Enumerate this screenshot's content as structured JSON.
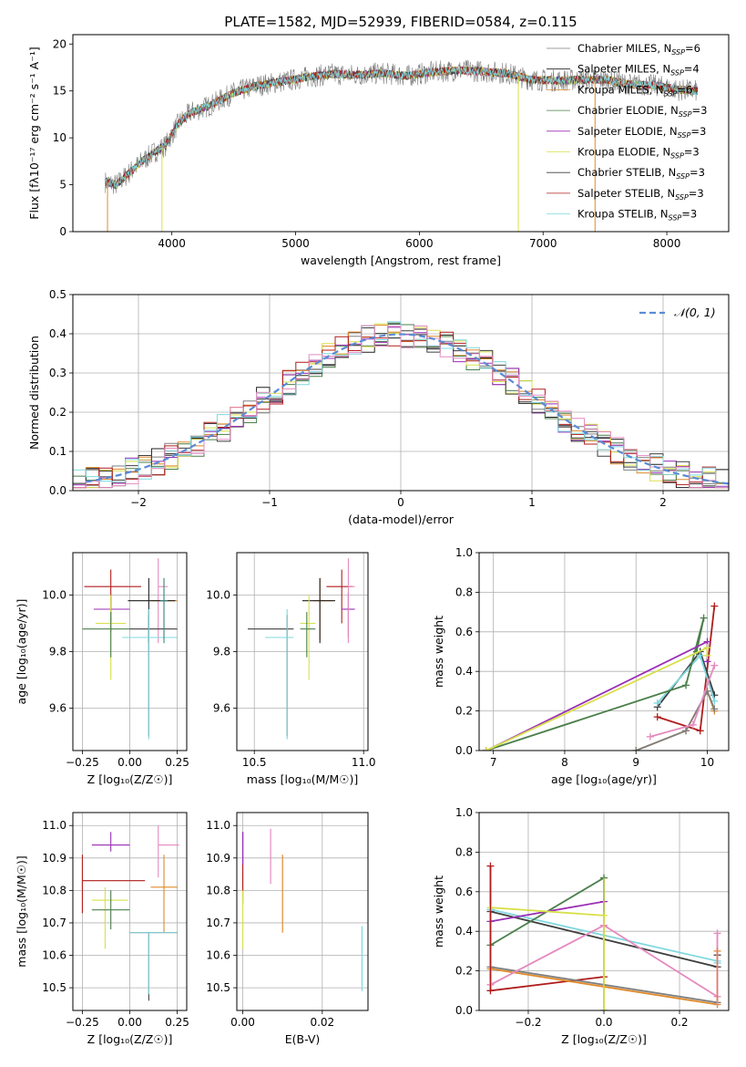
{
  "figure_title": "PLATE=1582, MJD=52939, FIBERID=0584, z=0.115",
  "colors": {
    "Chabrier MILES": "#7f7f7f",
    "Salpeter MILES": "#1f1f1f",
    "Kroupa MILES": "#e08a2a",
    "Chabrier ELODIE": "#4a7f4a",
    "Salpeter ELODIE": "#9a2fb5",
    "Kroupa ELODIE": "#d8e04a",
    "Chabrier STELIB": "#3f3f3f",
    "Salpeter STELIB": "#b01c1c",
    "Kroupa STELIB": "#7fd8df",
    "pink": "#e58ac0",
    "teal": "#3a8a8a",
    "normal_line": "#5b8bd6"
  },
  "chart_data": [
    {
      "id": "spectrum",
      "type": "line",
      "title": "PLATE=1582, MJD=52939, FIBERID=0584, z=0.115",
      "xlabel": "wavelength [Angstrom, rest frame]",
      "ylabel": "Flux [fλ10⁻¹⁷ erg cm⁻² s⁻¹ A⁻¹]",
      "xlim": [
        3200,
        8500
      ],
      "ylim": [
        0,
        21
      ],
      "xticks": [
        4000,
        5000,
        6000,
        7000,
        8000
      ],
      "yticks": [
        0,
        5,
        10,
        15,
        20
      ],
      "grid": false,
      "legend_position": "right",
      "continuum": {
        "x": [
          3460,
          3550,
          3650,
          3750,
          3850,
          3950,
          4050,
          4150,
          4300,
          4500,
          4700,
          4900,
          5100,
          5300,
          5500,
          5700,
          5900,
          6100,
          6300,
          6500,
          6700,
          6900,
          7100,
          7300,
          7500,
          7700,
          7900,
          8100,
          8250
        ],
        "y": [
          5.3,
          5.0,
          6.2,
          7.4,
          8.4,
          9.2,
          11.5,
          12.7,
          13.4,
          14.8,
          15.6,
          16.0,
          16.5,
          16.8,
          16.7,
          16.9,
          16.6,
          17.0,
          17.2,
          17.1,
          16.9,
          16.2,
          16.1,
          16.2,
          16.2,
          15.7,
          15.6,
          15.1,
          15.0
        ]
      },
      "series": [
        {
          "name": "Chabrier MILES, N_SSP=6",
          "label": "Chabrier MILES, N",
          "sub": "SSP",
          "tail": "=6"
        },
        {
          "name": "Salpeter MILES, N_SSP=4",
          "label": "Salpeter MILES, N",
          "sub": "SSP",
          "tail": "=4"
        },
        {
          "name": "Kroupa MILES, N_SSP=6",
          "label": "Kroupa MILES, N",
          "sub": "SSP",
          "tail": "=6"
        },
        {
          "name": "Chabrier ELODIE, N_SSP=3",
          "label": "Chabrier ELODIE, N",
          "sub": "SSP",
          "tail": "=3"
        },
        {
          "name": "Salpeter ELODIE, N_SSP=3",
          "label": "Salpeter ELODIE, N",
          "sub": "SSP",
          "tail": "=3"
        },
        {
          "name": "Kroupa ELODIE, N_SSP=3",
          "label": "Kroupa ELODIE, N",
          "sub": "SSP",
          "tail": "=3"
        },
        {
          "name": "Chabrier STELIB, N_SSP=3",
          "label": "Chabrier STELIB, N",
          "sub": "SSP",
          "tail": "=3"
        },
        {
          "name": "Salpeter STELIB, N_SSP=3",
          "label": "Salpeter STELIB, N",
          "sub": "SSP",
          "tail": "=3"
        },
        {
          "name": "Kroupa STELIB, N_SSP=3",
          "label": "Kroupa STELIB, N",
          "sub": "SSP",
          "tail": "=3"
        }
      ]
    },
    {
      "id": "residuals",
      "type": "histogram",
      "xlabel": "(data-model)/error",
      "ylabel": "Normed distribution",
      "xlim": [
        -2.5,
        2.5
      ],
      "ylim": [
        0,
        0.5
      ],
      "xticks": [
        -2,
        -1,
        0,
        1,
        2
      ],
      "yticks": [
        0.0,
        0.1,
        0.2,
        0.3,
        0.4,
        0.5
      ],
      "grid": true,
      "legend": "𝒩(0, 1)",
      "legend_position": "top-right",
      "bin_width": 0.1,
      "x_start": -2.5,
      "hist_series": [
        {
          "name": "Chabrier MILES",
          "values": [
            0.025,
            0.03,
            0.032,
            0.028,
            0.04,
            0.05,
            0.055,
            0.07,
            0.09,
            0.1,
            0.11,
            0.12,
            0.13,
            0.15,
            0.17,
            0.19,
            0.21,
            0.22,
            0.23,
            0.25,
            0.26,
            0.28,
            0.3,
            0.32,
            0.33,
            0.35,
            0.36,
            0.37,
            0.38,
            0.39,
            0.4,
            0.41,
            0.39,
            0.4,
            0.41,
            0.4,
            0.39,
            0.4,
            0.38,
            0.37,
            0.36,
            0.35,
            0.33,
            0.32,
            0.3,
            0.28,
            0.27,
            0.25,
            0.23,
            0.22,
            0.2,
            0.18,
            0.17,
            0.15,
            0.13,
            0.12,
            0.1,
            0.09,
            0.08,
            0.07,
            0.06,
            0.05,
            0.045,
            0.04,
            0.035,
            0.03,
            0.025,
            0.02,
            0.02,
            0.015
          ]
        }
      ],
      "normal": {
        "mu": 0,
        "sigma": 1
      }
    },
    {
      "id": "age-Z",
      "type": "errorbar",
      "xlabel": "Z [log₁₀(Z/Z☉)]",
      "ylabel": "age  [log₁₀(age/yr)]",
      "xlim": [
        -0.3,
        0.3
      ],
      "ylim": [
        9.45,
        10.15
      ],
      "xticks": [
        -0.25,
        0.0,
        0.25
      ],
      "xticklabels": [
        "−0.25",
        "0.00",
        "0.25"
      ],
      "yticks": [
        9.6,
        9.8,
        10.0
      ],
      "grid": true,
      "points": [
        {
          "x": -0.1,
          "y": 10.03,
          "xe": [
            0.14,
            0.16
          ],
          "ye": [
            0.13,
            0.06
          ],
          "color": "Salpeter STELIB"
        },
        {
          "x": -0.1,
          "y": 9.95,
          "xe": [
            0.09,
            0.1
          ],
          "ye": [
            0.08,
            0.05
          ],
          "color": "Salpeter ELODIE"
        },
        {
          "x": 0.15,
          "y": 10.03,
          "xe": [
            0.0,
            0.05
          ],
          "ye": [
            0.2,
            0.1
          ],
          "color": "pink"
        },
        {
          "x": 0.18,
          "y": 9.98,
          "xe": [
            0.07,
            0.07
          ],
          "ye": [
            0.14,
            0.08
          ],
          "color": "Kroupa MILES"
        },
        {
          "x": 0.1,
          "y": 9.98,
          "xe": [
            0.11,
            0.14
          ],
          "ye": [
            0.15,
            0.08
          ],
          "color": "Salpeter MILES"
        },
        {
          "x": -0.1,
          "y": 9.9,
          "xe": [
            0.08,
            0.08
          ],
          "ye": [
            0.2,
            0.1
          ],
          "color": "Kroupa ELODIE"
        },
        {
          "x": -0.1,
          "y": 9.88,
          "xe": [
            0.15,
            0.1
          ],
          "ye": [
            0.1,
            0.06
          ],
          "color": "Chabrier ELODIE"
        },
        {
          "x": 0.1,
          "y": 9.88,
          "xe": [
            0.1,
            0.15
          ],
          "ye": [
            0.38,
            0.05
          ],
          "color": "Chabrier STELIB"
        },
        {
          "x": 0.1,
          "y": 9.85,
          "xe": [
            0.14,
            0.15
          ],
          "ye": [
            0.36,
            0.1
          ],
          "color": "Kroupa STELIB"
        },
        {
          "x": 0.18,
          "y": 9.98,
          "xe": [
            0.02,
            0.02
          ],
          "ye": [
            0.15,
            0.08
          ],
          "color": "teal"
        }
      ]
    },
    {
      "id": "age-mass",
      "type": "errorbar",
      "xlabel": "mass [log₁₀(M/M☉)]",
      "ylabel": "",
      "xlim": [
        10.42,
        11.02
      ],
      "ylim": [
        9.45,
        10.15
      ],
      "xticks": [
        10.5,
        11.0
      ],
      "xticklabels": [
        "10.5",
        "11.0"
      ],
      "yticks": [
        9.6,
        9.8,
        10.0
      ],
      "grid": true,
      "points": [
        {
          "x": 10.9,
          "y": 10.03,
          "xe": [
            0.07,
            0.05
          ],
          "ye": [
            0.13,
            0.06
          ],
          "color": "Salpeter STELIB"
        },
        {
          "x": 10.93,
          "y": 9.95,
          "xe": [
            0.03,
            0.03
          ],
          "ye": [
            0.1,
            0.06
          ],
          "color": "Salpeter ELODIE"
        },
        {
          "x": 10.93,
          "y": 10.03,
          "xe": [
            0.0,
            0.03
          ],
          "ye": [
            0.2,
            0.1
          ],
          "color": "pink"
        },
        {
          "x": 10.8,
          "y": 9.98,
          "xe": [
            0.03,
            0.06
          ],
          "ye": [
            0.14,
            0.08
          ],
          "color": "Kroupa MILES"
        },
        {
          "x": 10.8,
          "y": 9.98,
          "xe": [
            0.08,
            0.07
          ],
          "ye": [
            0.15,
            0.08
          ],
          "color": "Salpeter MILES"
        },
        {
          "x": 10.75,
          "y": 9.9,
          "xe": [
            0.04,
            0.03
          ],
          "ye": [
            0.2,
            0.1
          ],
          "color": "Kroupa ELODIE"
        },
        {
          "x": 10.74,
          "y": 9.88,
          "xe": [
            0.03,
            0.04
          ],
          "ye": [
            0.1,
            0.06
          ],
          "color": "Chabrier ELODIE"
        },
        {
          "x": 10.65,
          "y": 9.88,
          "xe": [
            0.18,
            0.03
          ],
          "ye": [
            0.38,
            0.05
          ],
          "color": "Chabrier STELIB"
        },
        {
          "x": 10.65,
          "y": 9.85,
          "xe": [
            0.1,
            0.03
          ],
          "ye": [
            0.36,
            0.1
          ],
          "color": "Kroupa STELIB"
        }
      ]
    },
    {
      "id": "weight-age",
      "type": "line",
      "xlabel": "age  [log₁₀(age/yr)]",
      "ylabel": "mass weight",
      "xlim": [
        6.8,
        10.3
      ],
      "ylim": [
        0,
        1.0
      ],
      "xticks": [
        7,
        8,
        9,
        10
      ],
      "yticks": [
        0.0,
        0.2,
        0.4,
        0.6,
        0.8,
        1.0
      ],
      "grid": true,
      "series": [
        {
          "name": "Salpeter STELIB",
          "x": [
            9.3,
            9.9,
            10.1
          ],
          "y": [
            0.17,
            0.1,
            0.73
          ]
        },
        {
          "name": "Chabrier STELIB",
          "x": [
            9.3,
            9.9,
            10.1
          ],
          "y": [
            0.22,
            0.5,
            0.28
          ]
        },
        {
          "name": "Kroupa STELIB",
          "x": [
            9.3,
            9.9,
            10.1
          ],
          "y": [
            0.24,
            0.48,
            0.25
          ]
        },
        {
          "name": "Chabrier ELODIE",
          "x": [
            6.9,
            9.7,
            9.95,
            9.85
          ],
          "y": [
            0.0,
            0.33,
            0.67,
            0.5
          ]
        },
        {
          "name": "Salpeter ELODIE",
          "x": [
            6.9,
            10.0,
            10.0
          ],
          "y": [
            0.0,
            0.55,
            0.45
          ]
        },
        {
          "name": "Kroupa ELODIE",
          "x": [
            6.9,
            10.0,
            10.0
          ],
          "y": [
            0.0,
            0.52,
            0.48
          ]
        },
        {
          "name": "Kroupa MILES",
          "x": [
            9.0,
            9.7,
            10.0,
            10.1
          ],
          "y": [
            0.0,
            0.1,
            0.3,
            0.2
          ]
        },
        {
          "name": "Chabrier MILES",
          "x": [
            9.0,
            9.7,
            10.0,
            10.1
          ],
          "y": [
            0.0,
            0.1,
            0.3,
            0.21
          ]
        },
        {
          "name": "pink",
          "x": [
            9.2,
            9.8,
            10.1
          ],
          "y": [
            0.07,
            0.13,
            0.43
          ]
        }
      ]
    },
    {
      "id": "mass-Z",
      "type": "errorbar",
      "xlabel": "Z [log₁₀(Z/Z☉)]",
      "ylabel": "mass [log₁₀(M/M☉)]",
      "xlim": [
        -0.3,
        0.3
      ],
      "ylim": [
        10.43,
        11.04
      ],
      "xticks": [
        -0.25,
        0.0,
        0.25
      ],
      "xticklabels": [
        "−0.25",
        "0.00",
        "0.25"
      ],
      "yticks": [
        10.5,
        10.6,
        10.7,
        10.8,
        10.9,
        11.0
      ],
      "grid": true,
      "points": [
        {
          "x": -0.1,
          "y": 10.94,
          "xe": [
            0.1,
            0.1
          ],
          "ye": [
            0.02,
            0.04
          ],
          "color": "Salpeter ELODIE"
        },
        {
          "x": 0.15,
          "y": 10.94,
          "xe": [
            0.0,
            0.11
          ],
          "ye": [
            0.1,
            0.06
          ],
          "color": "pink"
        },
        {
          "x": -0.25,
          "y": 10.83,
          "xe": [
            0.0,
            0.33
          ],
          "ye": [
            0.1,
            0.08
          ],
          "color": "Salpeter STELIB"
        },
        {
          "x": 0.18,
          "y": 10.81,
          "xe": [
            0.07,
            0.07
          ],
          "ye": [
            0.14,
            0.1
          ],
          "color": "Kroupa MILES"
        },
        {
          "x": -0.13,
          "y": 10.77,
          "xe": [
            0.07,
            0.12
          ],
          "ye": [
            0.15,
            0.04
          ],
          "color": "Kroupa ELODIE"
        },
        {
          "x": -0.1,
          "y": 10.74,
          "xe": [
            0.1,
            0.1
          ],
          "ye": [
            0.06,
            0.06
          ],
          "color": "Chabrier ELODIE"
        },
        {
          "x": 0.1,
          "y": 10.67,
          "xe": [
            0.1,
            0.15
          ],
          "ye": [
            0.21,
            0.0
          ],
          "color": "Chabrier STELIB"
        },
        {
          "x": 0.1,
          "y": 10.67,
          "xe": [
            0.1,
            0.15
          ],
          "ye": [
            0.19,
            0.0
          ],
          "color": "Kroupa STELIB"
        }
      ]
    },
    {
      "id": "mass-EBV",
      "type": "errorbar",
      "xlabel": "E(B-V)",
      "ylabel": "",
      "xlim": [
        -0.0015,
        0.0315
      ],
      "ylim": [
        10.43,
        11.04
      ],
      "xticks": [
        0.0,
        0.02
      ],
      "xticklabels": [
        "0.00",
        "0.02"
      ],
      "yticks": [
        10.5,
        10.6,
        10.7,
        10.8,
        10.9,
        11.0
      ],
      "grid": true,
      "vbars": [
        {
          "x": 0.0,
          "y0": 10.76,
          "y1": 10.98,
          "color": "Salpeter STELIB"
        },
        {
          "x": 0.0,
          "y0": 10.62,
          "y1": 10.8,
          "color": "Kroupa ELODIE"
        },
        {
          "x": 0.0,
          "y0": 10.88,
          "y1": 10.98,
          "color": "Salpeter ELODIE"
        },
        {
          "x": 0.007,
          "y0": 10.82,
          "y1": 10.99,
          "color": "pink"
        },
        {
          "x": 0.01,
          "y0": 10.67,
          "y1": 10.91,
          "color": "Kroupa MILES"
        },
        {
          "x": 0.03,
          "y0": 10.49,
          "y1": 10.69,
          "color": "Kroupa STELIB"
        }
      ]
    },
    {
      "id": "weight-Z",
      "type": "line",
      "xlabel": "Z [log₁₀(Z/Z☉)]",
      "ylabel": "mass weight",
      "xlim": [
        -0.33,
        0.33
      ],
      "ylim": [
        0,
        1.0
      ],
      "xticks": [
        -0.2,
        0.0,
        0.2
      ],
      "xticklabels": [
        "−0.2",
        "0.0",
        "0.2"
      ],
      "yticks": [
        0.0,
        0.2,
        0.4,
        0.6,
        0.8,
        1.0
      ],
      "grid": true,
      "series": [
        {
          "name": "Salpeter STELIB",
          "x": [
            -0.3,
            -0.3,
            0.0
          ],
          "y": [
            0.73,
            0.1,
            0.17
          ]
        },
        {
          "name": "Chabrier STELIB",
          "x": [
            -0.3,
            0.3,
            0.3
          ],
          "y": [
            0.5,
            0.22,
            0.28
          ]
        },
        {
          "name": "Kroupa STELIB",
          "x": [
            -0.3,
            0.3,
            0.3
          ],
          "y": [
            0.51,
            0.25,
            0.24
          ]
        },
        {
          "name": "Chabrier ELODIE",
          "x": [
            -0.3,
            0.0,
            0.0
          ],
          "y": [
            0.33,
            0.67,
            0.0
          ]
        },
        {
          "name": "Salpeter ELODIE",
          "x": [
            -0.3,
            0.0
          ],
          "y": [
            0.45,
            0.55
          ]
        },
        {
          "name": "Kroupa ELODIE",
          "x": [
            -0.3,
            0.0,
            0.0
          ],
          "y": [
            0.52,
            0.48,
            0.0
          ]
        },
        {
          "name": "Kroupa MILES",
          "x": [
            -0.3,
            0.3,
            0.3
          ],
          "y": [
            0.21,
            0.03,
            0.3
          ]
        },
        {
          "name": "Chabrier MILES",
          "x": [
            -0.3,
            0.3
          ],
          "y": [
            0.22,
            0.04
          ]
        },
        {
          "name": "pink",
          "x": [
            -0.3,
            0.0,
            0.3,
            0.3
          ],
          "y": [
            0.13,
            0.43,
            0.07,
            0.39
          ]
        }
      ]
    }
  ]
}
